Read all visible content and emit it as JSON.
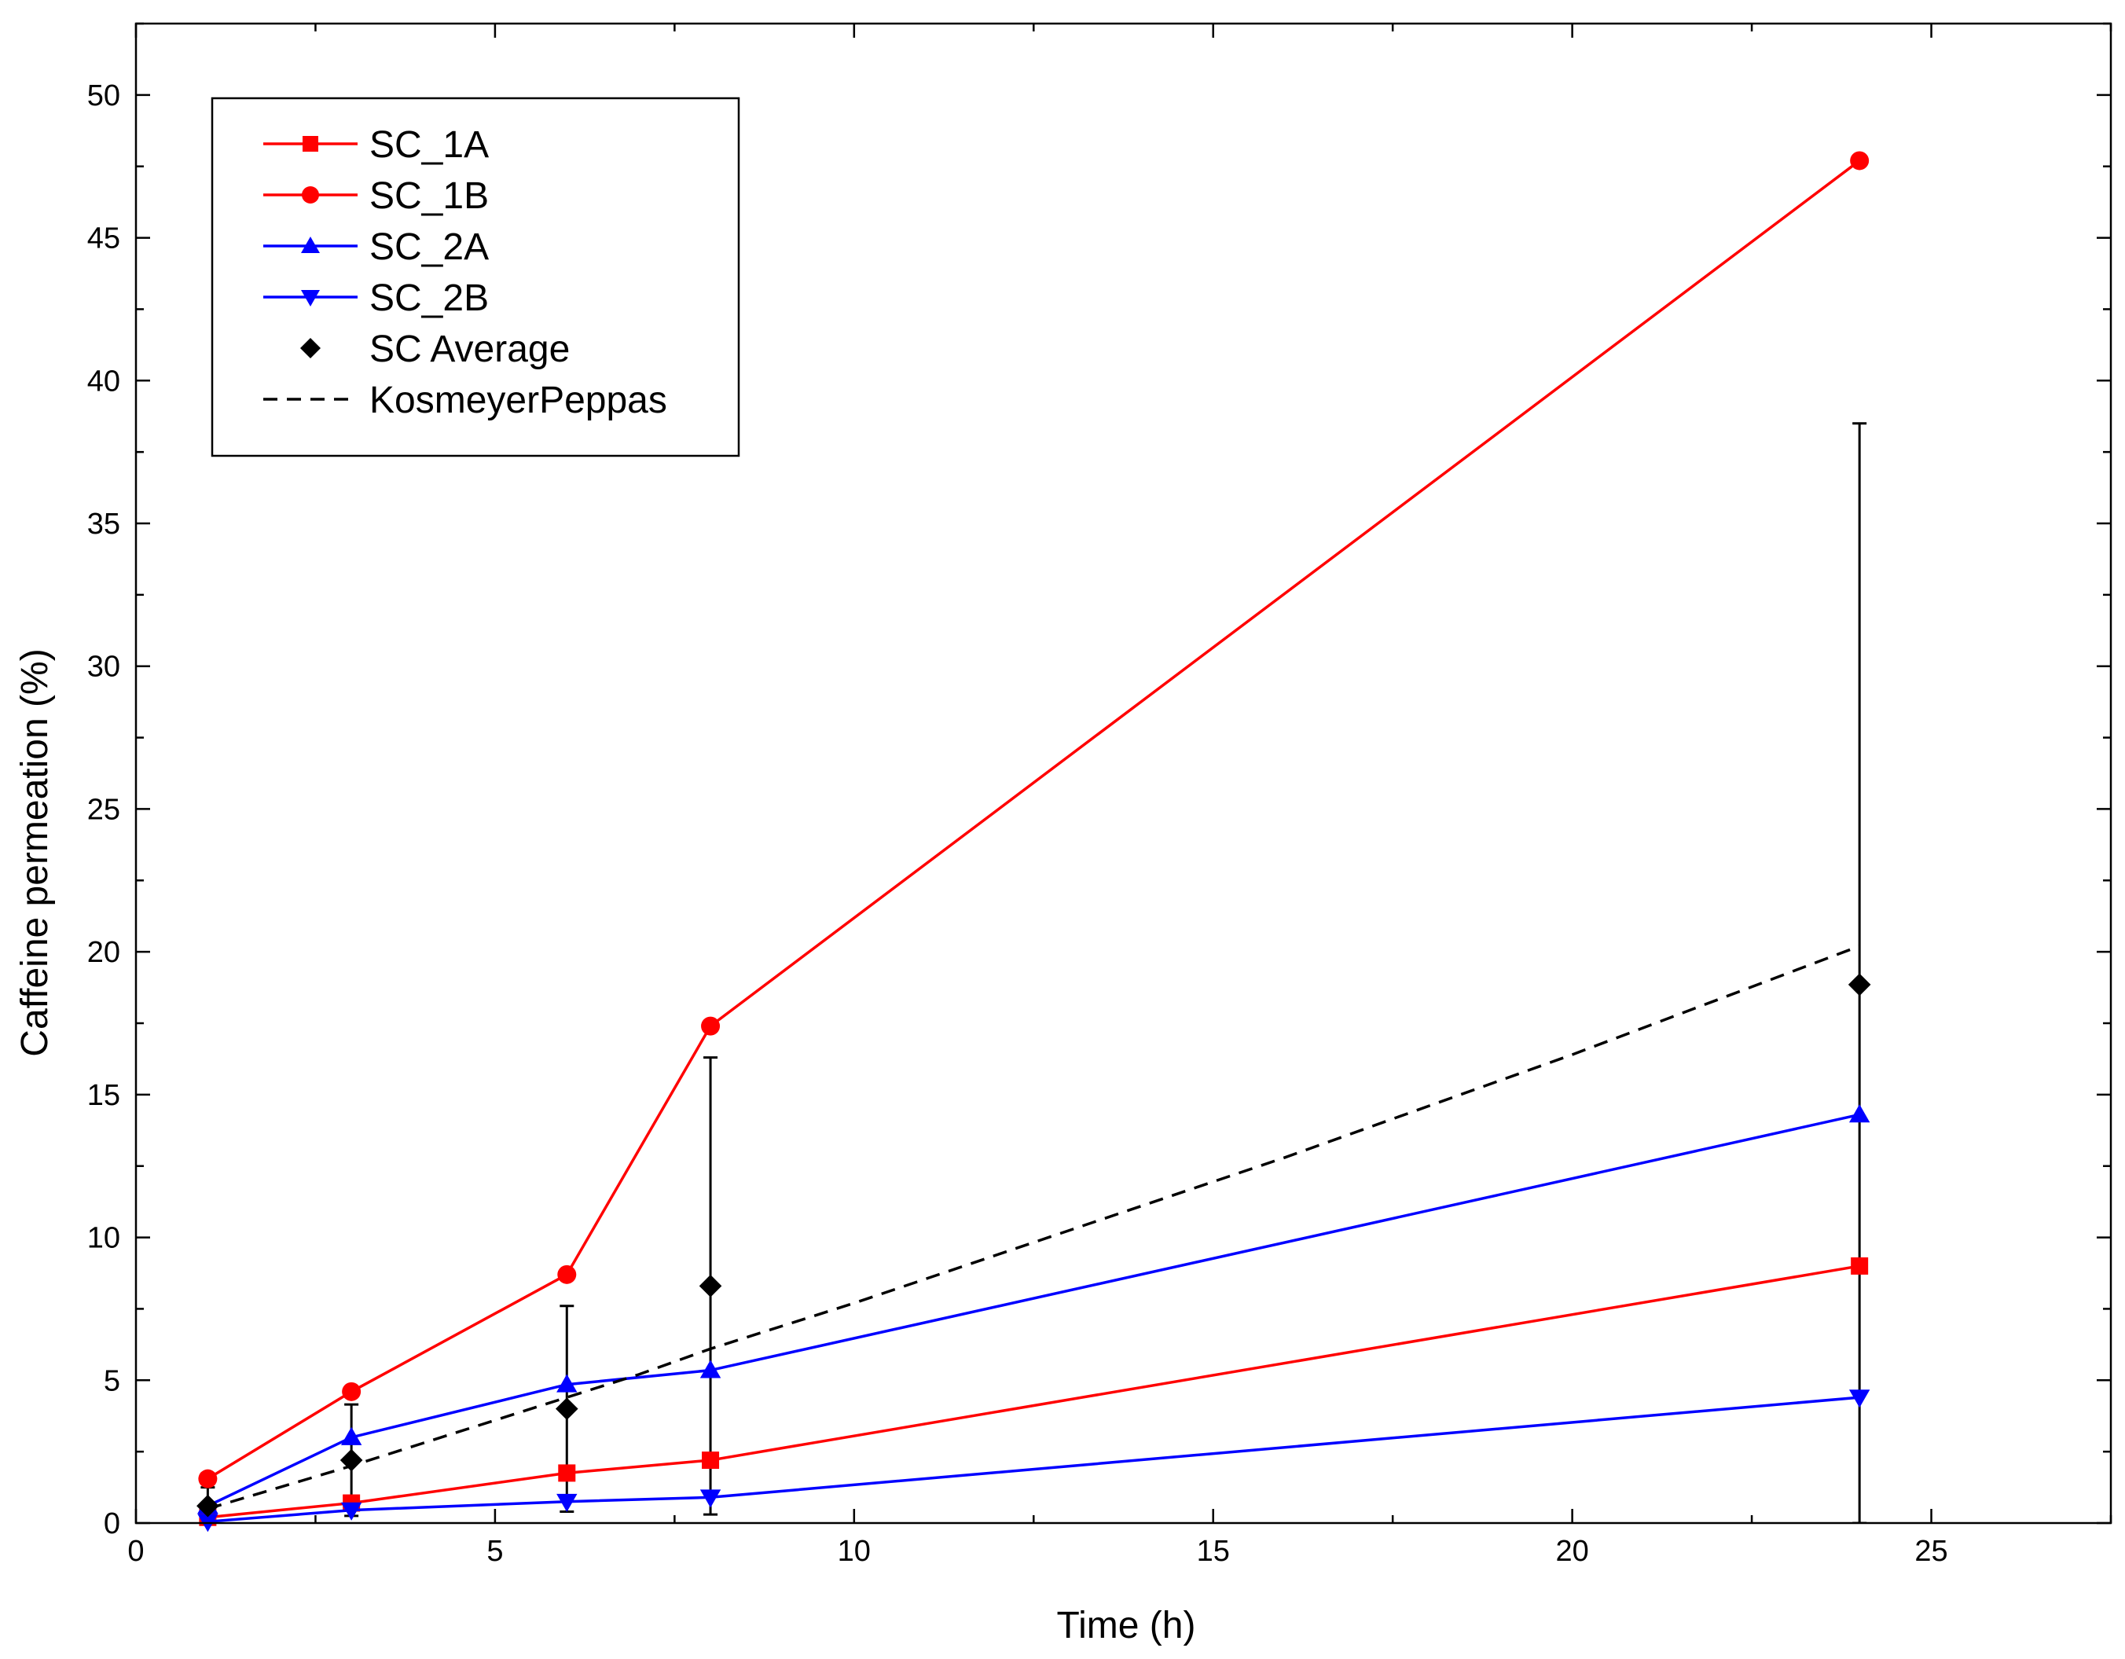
{
  "chart_data": {
    "type": "line",
    "title": "",
    "xlabel": "Time (h)",
    "ylabel": "Caffeine permeation (%)",
    "xlim": [
      0,
      27.5
    ],
    "ylim": [
      0,
      52.5
    ],
    "x_ticks": [
      0,
      5,
      10,
      15,
      20,
      25
    ],
    "x_tick_labels": [
      "0",
      "5",
      "10",
      "15",
      "20",
      "25"
    ],
    "y_ticks": [
      0,
      5,
      10,
      15,
      20,
      25,
      30,
      35,
      40,
      45,
      50
    ],
    "y_tick_labels": [
      "0",
      "5",
      "10",
      "15",
      "20",
      "25",
      "30",
      "35",
      "40",
      "45",
      "50"
    ],
    "grid": false,
    "legend_position": "top-left",
    "series": [
      {
        "name": "SC_1A",
        "color": "#ff0000",
        "marker": "square",
        "line": "solid",
        "x": [
          1,
          3,
          6,
          8,
          24
        ],
        "values": [
          0.2,
          0.7,
          1.75,
          2.2,
          9.0
        ]
      },
      {
        "name": "SC_1B",
        "color": "#ff0000",
        "marker": "circle",
        "line": "solid",
        "x": [
          1,
          3,
          6,
          8,
          24
        ],
        "values": [
          1.55,
          4.6,
          8.7,
          17.4,
          47.7
        ]
      },
      {
        "name": "SC_2A",
        "color": "#0000ff",
        "marker": "triangle-up",
        "line": "solid",
        "x": [
          1,
          3,
          6,
          8,
          24
        ],
        "values": [
          0.6,
          3.0,
          4.85,
          5.35,
          14.3
        ]
      },
      {
        "name": "SC_2B",
        "color": "#0000ff",
        "marker": "triangle-down",
        "line": "solid",
        "x": [
          1,
          3,
          6,
          8,
          24
        ],
        "values": [
          0.05,
          0.45,
          0.75,
          0.9,
          4.4
        ]
      },
      {
        "name": "SC Average",
        "color": "#000000",
        "marker": "diamond",
        "line": "none",
        "x": [
          1,
          3,
          6,
          8,
          24
        ],
        "values": [
          0.6,
          2.2,
          4.0,
          8.3,
          18.85
        ],
        "error": [
          0.65,
          1.95,
          3.6,
          8.0,
          19.65
        ]
      },
      {
        "name": "KosmeyerPeppas",
        "color": "#000000",
        "marker": "none",
        "line": "dashed",
        "x": [
          1,
          2,
          3,
          4,
          5,
          6,
          7,
          8,
          10,
          12,
          14,
          16,
          18,
          20,
          22,
          24
        ],
        "values": [
          0.5,
          1.25,
          2.0,
          2.8,
          3.6,
          4.4,
          5.2,
          6.1,
          7.7,
          9.4,
          11.1,
          12.8,
          14.6,
          16.4,
          18.3,
          20.2
        ]
      }
    ]
  }
}
